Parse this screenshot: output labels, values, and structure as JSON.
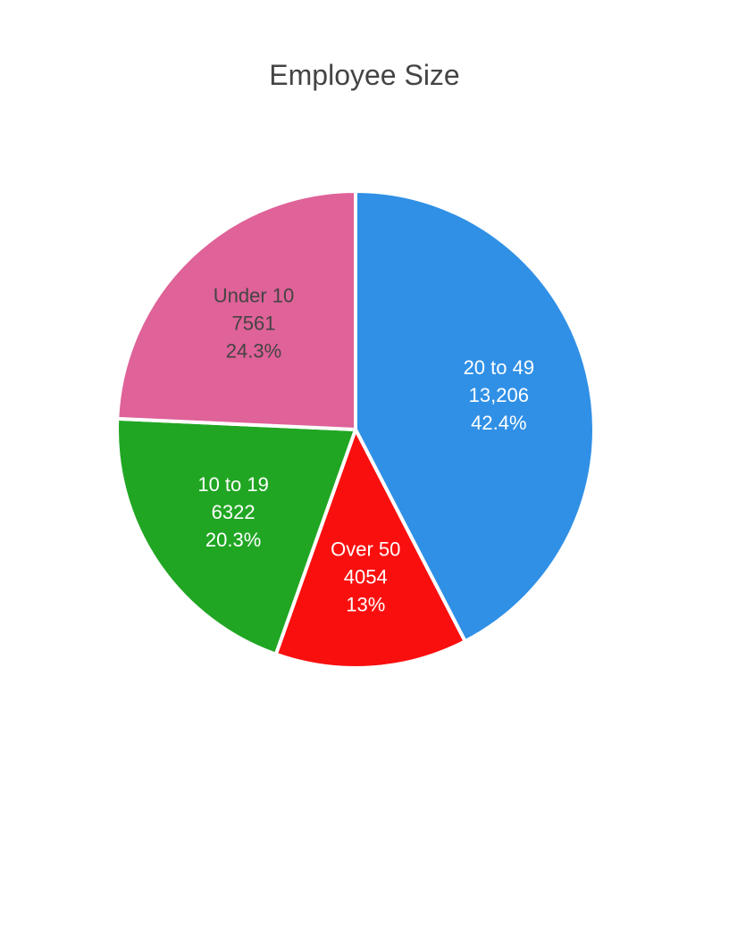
{
  "chart_data": {
    "type": "pie",
    "title": "Employee Size",
    "slices": [
      {
        "label": "20 to 49",
        "value": 13206,
        "value_text": "13,206",
        "percent_text": "42.4%",
        "color": "#3090e6",
        "text_color": "#ffffff"
      },
      {
        "label": "Over 50",
        "value": 4054,
        "value_text": "4054",
        "percent_text": "13%",
        "color": "#fa0f0f",
        "text_color": "#ffffff"
      },
      {
        "label": "10 to 19",
        "value": 6322,
        "value_text": "6322",
        "percent_text": "20.3%",
        "color": "#21a623",
        "text_color": "#ffffff"
      },
      {
        "label": "Under 10",
        "value": 7561,
        "value_text": "7561",
        "percent_text": "24.3%",
        "color": "#df6298",
        "text_color": "#444444"
      }
    ],
    "start": "12 o'clock",
    "direction": "clockwise",
    "legend": "none"
  }
}
